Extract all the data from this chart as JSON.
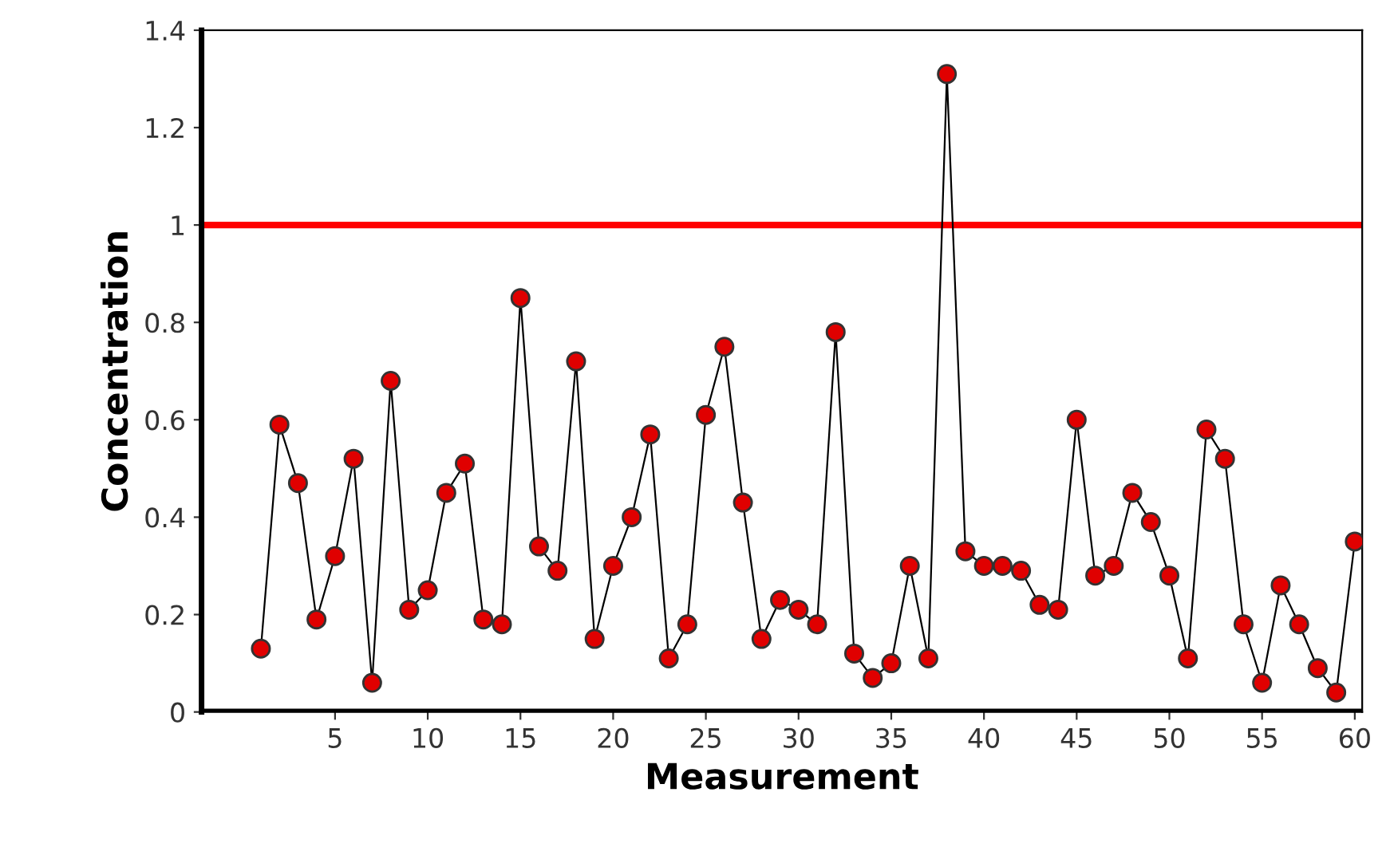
{
  "chart_data": {
    "type": "line",
    "xlabel": "Measurement",
    "ylabel": "Concentration",
    "x": [
      1,
      2,
      3,
      4,
      5,
      6,
      7,
      8,
      9,
      10,
      11,
      12,
      13,
      14,
      15,
      16,
      17,
      18,
      19,
      20,
      21,
      22,
      23,
      24,
      25,
      26,
      27,
      28,
      29,
      30,
      31,
      32,
      33,
      34,
      35,
      36,
      37,
      38,
      39,
      40,
      41,
      42,
      43,
      44,
      45,
      46,
      47,
      48,
      49,
      50,
      51,
      52,
      53,
      54,
      55,
      56,
      57,
      58,
      59,
      60
    ],
    "series": [
      {
        "color": "#e00000",
        "values": [
          0.13,
          0.59,
          0.47,
          0.19,
          0.32,
          0.52,
          0.06,
          0.68,
          0.21,
          0.25,
          0.45,
          0.51,
          0.19,
          0.18,
          0.85,
          0.34,
          0.29,
          0.72,
          0.15,
          0.3,
          0.4,
          0.57,
          0.11,
          0.18,
          0.61,
          0.75,
          0.43,
          0.15,
          0.23,
          0.21,
          0.18,
          0.78,
          0.12,
          0.07,
          0.1,
          0.3,
          0.11,
          1.31,
          0.33,
          0.3,
          0.3,
          0.29,
          0.22,
          0.21,
          0.6,
          0.28,
          0.3,
          0.45,
          0.39,
          0.28,
          0.11,
          0.58,
          0.52,
          0.18,
          0.06,
          0.26,
          0.18,
          0.09,
          0.04,
          0.35
        ]
      }
    ],
    "marker": "circle",
    "line_style": "solid",
    "xlim": [
      -2.2,
      60.4
    ],
    "xticks": [
      5,
      10,
      15,
      20,
      25,
      30,
      35,
      40,
      45,
      50,
      55,
      60
    ],
    "ylim": [
      0,
      1.4
    ],
    "yticks": [
      0,
      0.2,
      0.4,
      0.6,
      0.8,
      1,
      1.2,
      1.4
    ],
    "ref_lines": [
      {
        "axis": "y",
        "value": 1,
        "color": "#ff0000"
      },
      {
        "axis": "y",
        "value": 0,
        "color": "#000000"
      }
    ],
    "grid": false,
    "legend": false
  }
}
